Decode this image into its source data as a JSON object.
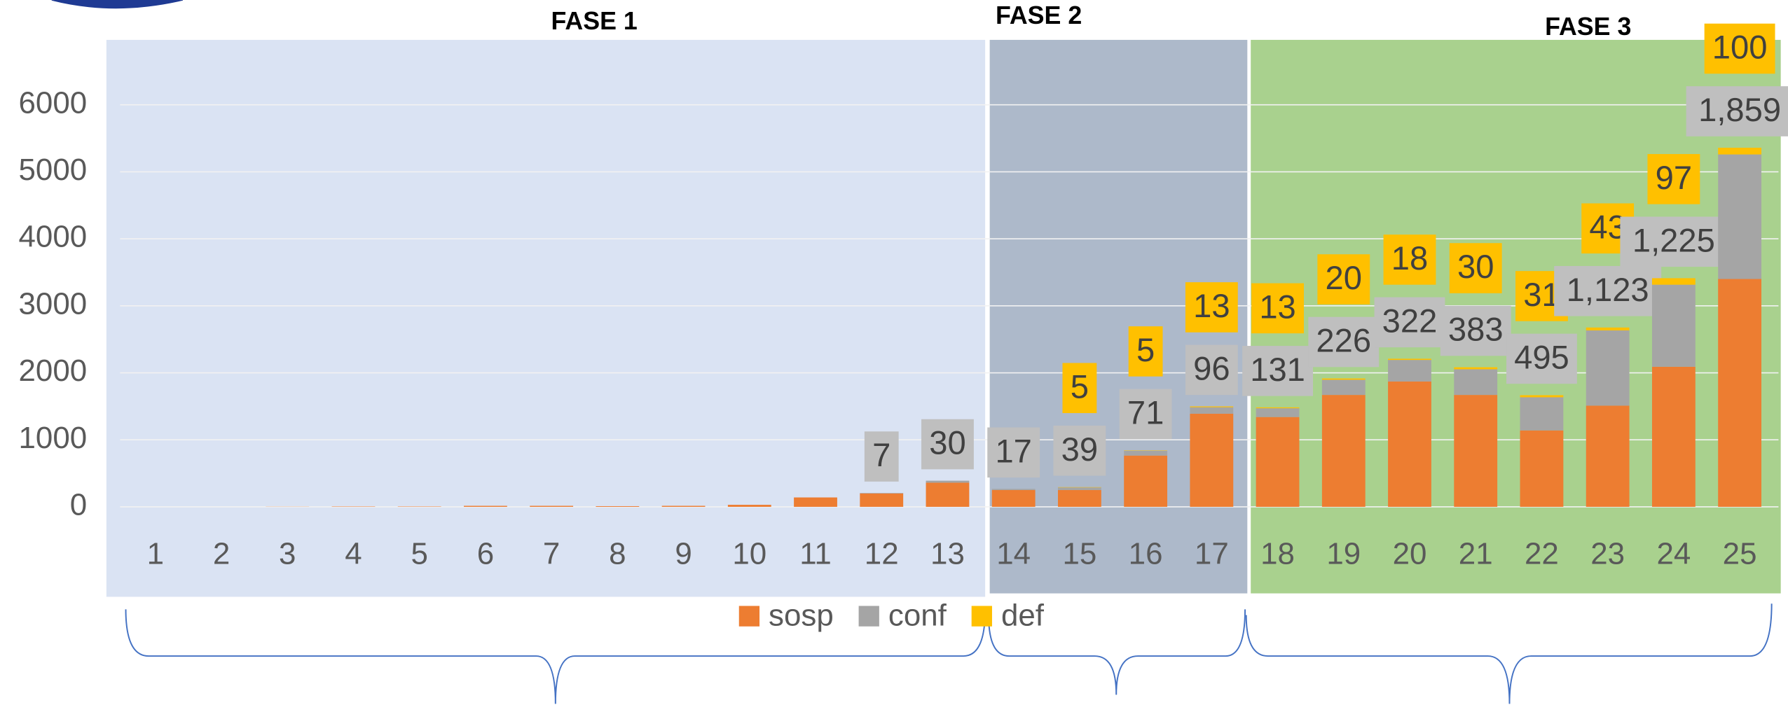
{
  "chart_data": {
    "type": "bar",
    "stacked": true,
    "phases": [
      "FASE 1",
      "FASE 2",
      "FASE 3"
    ],
    "categories": [
      "1",
      "2",
      "3",
      "4",
      "5",
      "6",
      "7",
      "8",
      "9",
      "10",
      "11",
      "12",
      "13",
      "14",
      "15",
      "16",
      "17",
      "18",
      "19",
      "20",
      "21",
      "22",
      "23",
      "24",
      "25"
    ],
    "series": [
      {
        "name": "sosp",
        "color": "#ed7d31",
        "values": [
          0,
          0,
          2,
          5,
          5,
          15,
          15,
          10,
          15,
          30,
          140,
          200,
          360,
          250,
          250,
          765,
          1390,
          1340,
          1670,
          1870,
          1670,
          1140,
          1510,
          2090,
          3400
        ]
      },
      {
        "name": "conf",
        "color": "#a5a5a5",
        "values": [
          0,
          0,
          0,
          0,
          0,
          0,
          0,
          0,
          0,
          0,
          0,
          7,
          30,
          17,
          39,
          71,
          96,
          131,
          226,
          322,
          383,
          495,
          1123,
          1225,
          1859
        ],
        "value_labels": [
          null,
          null,
          null,
          null,
          null,
          null,
          null,
          null,
          null,
          null,
          null,
          "7",
          "30",
          "17",
          "39",
          "71",
          "96",
          "131",
          "226",
          "322",
          "383",
          "495",
          "1,123",
          "1,225",
          "1,859"
        ]
      },
      {
        "name": "def",
        "color": "#ffc000",
        "values": [
          0,
          0,
          0,
          0,
          0,
          0,
          0,
          0,
          0,
          0,
          0,
          0,
          0,
          0,
          5,
          5,
          13,
          13,
          20,
          18,
          30,
          31,
          43,
          97,
          100
        ],
        "value_labels": [
          null,
          null,
          null,
          null,
          null,
          null,
          null,
          null,
          null,
          null,
          null,
          null,
          null,
          null,
          "5",
          "5",
          "13",
          "13",
          "20",
          "18",
          "30",
          "31",
          "43",
          "97",
          "100"
        ]
      }
    ],
    "ylim": [
      0,
      6000
    ],
    "yticks": [
      0,
      1000,
      2000,
      3000,
      4000,
      5000,
      6000
    ],
    "grid": true,
    "legend": "bottom"
  }
}
